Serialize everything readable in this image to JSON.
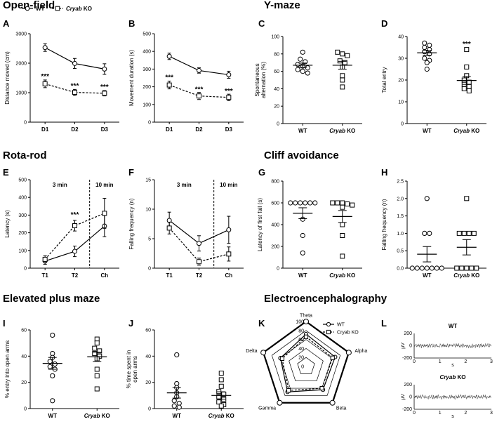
{
  "sections": {
    "open_field": "Open-field",
    "y_maze": "Y-maze",
    "rota_rod": "Rota-rod",
    "cliff": "Cliff avoidance",
    "epm": "Elevated plus maze",
    "eeg": "Electroencephalography"
  },
  "panel_labels": [
    "A",
    "B",
    "C",
    "D",
    "E",
    "F",
    "G",
    "H",
    "I",
    "J",
    "K",
    "L"
  ],
  "legend": {
    "wt": "WT",
    "ko_italic": "Cryab",
    "ko_rest": " KO",
    "ko_full": "Cryab KO"
  },
  "chart_data": [
    {
      "id": "A",
      "type": "line",
      "ylabel": "Distance moved (cm)",
      "categories": [
        "D1",
        "D2",
        "D3"
      ],
      "ylim": [
        0,
        3000
      ],
      "yticks": [
        0,
        1000,
        2000,
        3000
      ],
      "series": [
        {
          "name": "WT",
          "values": [
            2530,
            1990,
            1800
          ],
          "err": [
            130,
            170,
            180
          ]
        },
        {
          "name": "Cryab KO",
          "values": [
            1300,
            1010,
            980
          ],
          "err": [
            130,
            100,
            90
          ]
        }
      ],
      "stars": [
        {
          "label": "***",
          "index": 0,
          "value": 1480
        },
        {
          "label": "***",
          "index": 1,
          "value": 1160
        },
        {
          "label": "***",
          "index": 2,
          "value": 1120
        }
      ]
    },
    {
      "id": "B",
      "type": "line",
      "ylabel": "Movement duration (s)",
      "categories": [
        "D1",
        "D2",
        "D3"
      ],
      "ylim": [
        0,
        500
      ],
      "yticks": [
        0,
        100,
        200,
        300,
        400,
        500
      ],
      "series": [
        {
          "name": "WT",
          "values": [
            372,
            292,
            268
          ],
          "err": [
            18,
            15,
            20
          ]
        },
        {
          "name": "Cryab KO",
          "values": [
            210,
            148,
            140
          ],
          "err": [
            22,
            20,
            18
          ]
        }
      ],
      "stars": [
        {
          "label": "***",
          "index": 0,
          "value": 240
        },
        {
          "label": "***",
          "index": 1,
          "value": 172
        },
        {
          "label": "***",
          "index": 2,
          "value": 162
        }
      ]
    },
    {
      "id": "C",
      "type": "scatter",
      "ylabel": "Spontaneous alternation (%)",
      "ylabel_lines": [
        "Spontaneous",
        "alternation (%)"
      ],
      "categories": [
        "WT",
        "Cryab KO"
      ],
      "ylim": [
        0,
        100
      ],
      "yticks": [
        0,
        20,
        40,
        60,
        80,
        100
      ],
      "groups": [
        {
          "name": "WT",
          "values": [
            82,
            74,
            71,
            68,
            66,
            64,
            62,
            60,
            58
          ],
          "mean": 67,
          "sem": 2.5
        },
        {
          "name": "Cryab KO",
          "values": [
            82,
            80,
            78,
            72,
            70,
            65,
            55,
            50,
            42
          ],
          "mean": 67,
          "sem": 4.5
        }
      ]
    },
    {
      "id": "D",
      "type": "scatter",
      "ylabel": "Total entry",
      "categories": [
        "WT",
        "Cryab KO"
      ],
      "ylim": [
        0,
        40
      ],
      "yticks": [
        0,
        10,
        20,
        30,
        40
      ],
      "groups": [
        {
          "name": "WT",
          "values": [
            37,
            36,
            35,
            34,
            33,
            32,
            30,
            29,
            28,
            25
          ],
          "mean": 32.5,
          "sem": 1.2
        },
        {
          "name": "Cryab KO",
          "values": [
            34,
            26,
            22,
            20,
            19,
            18,
            17,
            16,
            15
          ],
          "mean": 19.8,
          "sem": 1.8
        }
      ],
      "stars": [
        {
          "label": "***",
          "index": 1,
          "value": 35.5
        }
      ]
    },
    {
      "id": "E",
      "type": "line",
      "ylabel": "Latency (s)",
      "categories": [
        "T1",
        "T2",
        "Ch"
      ],
      "ylim": [
        0,
        500
      ],
      "yticks": [
        0,
        100,
        200,
        300,
        400,
        500
      ],
      "series": [
        {
          "name": "WT",
          "values": [
            40,
            95,
            238
          ],
          "err": [
            18,
            30,
            60
          ]
        },
        {
          "name": "Cryab KO",
          "values": [
            50,
            240,
            310
          ],
          "err": [
            20,
            30,
            85
          ]
        }
      ],
      "stars": [
        {
          "label": "***",
          "index": 1,
          "value": 290
        }
      ],
      "phases": [
        "3 min",
        "10 min"
      ]
    },
    {
      "id": "F",
      "type": "line",
      "ylabel": "Falling frequency (n)",
      "categories": [
        "T1",
        "T2",
        "Ch"
      ],
      "ylim": [
        0,
        15
      ],
      "yticks": [
        0,
        5,
        10,
        15
      ],
      "series": [
        {
          "name": "WT",
          "values": [
            8.1,
            4.2,
            6.5
          ],
          "err": [
            1.4,
            1.3,
            2.3
          ]
        },
        {
          "name": "Cryab KO",
          "values": [
            6.8,
            1.1,
            2.4
          ],
          "err": [
            1.0,
            0.6,
            1.2
          ]
        }
      ],
      "phases": [
        "3 min",
        "10 min"
      ]
    },
    {
      "id": "G",
      "type": "scatter",
      "ylabel": "Latency of first fall (s)",
      "categories": [
        "WT",
        "Cryab KO"
      ],
      "ylim": [
        0,
        800
      ],
      "yticks": [
        0,
        200,
        400,
        600,
        800
      ],
      "groups": [
        {
          "name": "WT",
          "values": [
            600,
            600,
            600,
            600,
            600,
            600,
            450,
            300,
            140
          ],
          "mean": 505,
          "sem": 50
        },
        {
          "name": "Cryab KO",
          "values": [
            600,
            600,
            600,
            590,
            580,
            560,
            400,
            300,
            110
          ],
          "mean": 475,
          "sem": 55
        }
      ]
    },
    {
      "id": "H",
      "type": "scatter",
      "ylabel": "Falling frequency (n)",
      "categories": [
        "WT",
        "Cryab KO"
      ],
      "ylim": [
        0,
        2.5
      ],
      "yticks": [
        0,
        0.5,
        1.0,
        1.5,
        2.0,
        2.5
      ],
      "yticklabels": [
        "0.0",
        "0.5",
        "1.0",
        "1.5",
        "2.0",
        "2.5"
      ],
      "groups": [
        {
          "name": "WT",
          "values": [
            2,
            1,
            1,
            0,
            0,
            0,
            0,
            0,
            0,
            0
          ],
          "mean": 0.4,
          "sem": 0.22
        },
        {
          "name": "Cryab KO",
          "values": [
            2,
            1,
            1,
            1,
            1,
            0,
            0,
            0,
            0,
            0
          ],
          "mean": 0.6,
          "sem": 0.22
        }
      ]
    },
    {
      "id": "I",
      "type": "scatter",
      "ylabel": "% entry into open arms",
      "categories": [
        "WT",
        "Cryab KO"
      ],
      "ylim": [
        0,
        60
      ],
      "yticks": [
        0,
        20,
        40,
        60
      ],
      "groups": [
        {
          "name": "WT",
          "values": [
            56,
            42,
            39,
            36,
            34,
            32,
            30,
            25,
            6
          ],
          "mean": 34.5,
          "sem": 4.5
        },
        {
          "name": "Cryab KO",
          "values": [
            53,
            50,
            46,
            44,
            42,
            40,
            38,
            30,
            25,
            15
          ],
          "mean": 39.5,
          "sem": 3.5
        }
      ]
    },
    {
      "id": "J",
      "type": "scatter",
      "ylabel": "% time spent in open arms",
      "ylabel_lines": [
        "% time spent in",
        "open arms"
      ],
      "categories": [
        "WT",
        "Cryab KO"
      ],
      "ylim": [
        0,
        60
      ],
      "yticks": [
        0,
        20,
        40,
        60
      ],
      "groups": [
        {
          "name": "WT",
          "values": [
            41,
            19,
            16,
            12,
            9,
            6,
            4,
            2,
            1
          ],
          "mean": 12,
          "sem": 4
        },
        {
          "name": "Cryab KO",
          "values": [
            27,
            22,
            17,
            13,
            11,
            9,
            7,
            5,
            3,
            2
          ],
          "mean": 10,
          "sem": 2.8
        }
      ]
    },
    {
      "id": "K",
      "type": "radar",
      "axes": [
        "Theta",
        "Alpha",
        "Beta",
        "Gamma",
        "Delta"
      ],
      "rticks": [
        0,
        20,
        40,
        60,
        80,
        100
      ],
      "rmax": 100,
      "series": [
        {
          "name": "WT",
          "values": [
            72,
            68,
            64,
            70,
            60
          ]
        },
        {
          "name": "Cryab KO",
          "values": [
            66,
            62,
            60,
            66,
            56
          ]
        }
      ]
    }
  ],
  "eeg": {
    "traces": [
      {
        "title": "WT",
        "title_italic": false
      },
      {
        "title": "Cryab",
        "title_rest": " KO",
        "title_italic": true
      }
    ],
    "yticks": [
      "200",
      "0",
      "-200"
    ],
    "xticks": [
      "0",
      "1",
      "2",
      "3"
    ],
    "xlabel": "s",
    "ylabel": "μV"
  }
}
